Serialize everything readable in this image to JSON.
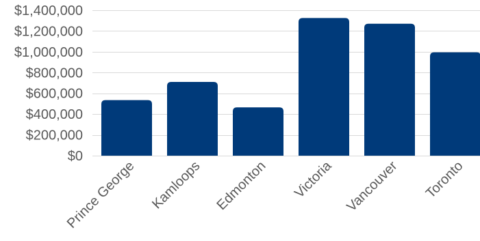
{
  "chart_data": {
    "type": "bar",
    "title": "",
    "xlabel": "",
    "ylabel": "",
    "categories": [
      "Prince George",
      "Kamloops",
      "Edmonton",
      "Victoria",
      "Vancouver",
      "Toronto"
    ],
    "values": [
      535000,
      710000,
      465000,
      1325000,
      1270000,
      995000
    ],
    "ylim": [
      0,
      1400000
    ],
    "yticks": [
      0,
      200000,
      400000,
      600000,
      800000,
      1000000,
      1200000,
      1400000
    ],
    "ytick_labels": [
      "$0",
      "$200,000",
      "$400,000",
      "$600,000",
      "$800,000",
      "$1,000,000",
      "$1,200,000",
      "$1,400,000"
    ],
    "grid": true,
    "legend": "none",
    "colors": {
      "bar": "#003A7A",
      "grid": "#D9D9D9",
      "text": "#595959"
    }
  }
}
